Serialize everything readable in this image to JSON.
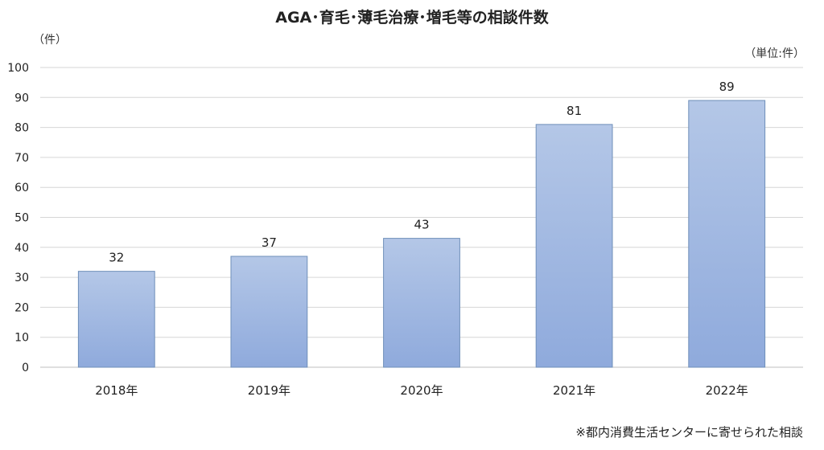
{
  "chart_data": {
    "type": "bar",
    "title": "AGA･育毛･薄毛治療･増毛等の相談件数",
    "ylabel": "（件）",
    "unit_label": "（単位:件）",
    "note": "※都内消費生活センターに寄せられた相談",
    "categories": [
      "2018年",
      "2019年",
      "2020年",
      "2021年",
      "2022年"
    ],
    "values": [
      32,
      37,
      43,
      81,
      89
    ],
    "ylim": [
      0,
      100
    ],
    "yticks": [
      0,
      10,
      20,
      30,
      40,
      50,
      60,
      70,
      80,
      90,
      100
    ],
    "grid": true,
    "legend": "none",
    "bar_color_top": "#b4c7e7",
    "bar_color_bottom": "#8faadc",
    "bar_border": "#6f8fb9"
  }
}
